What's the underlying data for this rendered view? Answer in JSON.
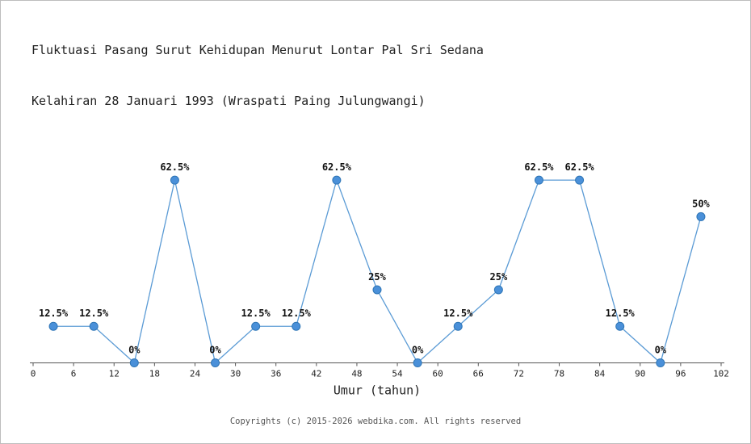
{
  "title": {
    "line1": "Fluktuasi Pasang Surut Kehidupan Menurut Lontar Pal Sri Sedana",
    "line2": "Kelahiran 28 Januari 1993 (Wraspati Paing Julungwangi)"
  },
  "footer": {
    "text": "Copyrights (c) 2015-2026 webdika.com. All rights reserved"
  },
  "chart_data": {
    "type": "line",
    "title": "Fluktuasi Pasang Surut Kehidupan Menurut Lontar Pal Sri Sedana Kelahiran 28 Januari 1993 (Wraspati Paing Julungwangi)",
    "xlabel": "Umur (tahun)",
    "ylabel": "",
    "x": [
      3,
      9,
      15,
      21,
      27,
      33,
      39,
      45,
      51,
      57,
      63,
      69,
      75,
      81,
      87,
      93,
      99
    ],
    "values": [
      12.5,
      12.5,
      0,
      62.5,
      0,
      12.5,
      12.5,
      62.5,
      25,
      0,
      12.5,
      25,
      62.5,
      62.5,
      12.5,
      0,
      50
    ],
    "labels": [
      "12.5%",
      "12.5%",
      "0%",
      "62.5%",
      "0%",
      "12.5%",
      "12.5%",
      "62.5%",
      "25%",
      "0%",
      "12.5%",
      "25%",
      "62.5%",
      "62.5%",
      "12.5%",
      "0%",
      "50%"
    ],
    "x_ticks": [
      0,
      6,
      12,
      18,
      24,
      30,
      36,
      42,
      48,
      54,
      60,
      66,
      72,
      78,
      84,
      90,
      96,
      102
    ],
    "xlim": [
      0,
      102
    ],
    "ylim": [
      0,
      70
    ],
    "grid": "off",
    "legend": "none",
    "line_color": "#5b9bd5",
    "marker_color": "#4a90d9",
    "marker_edge_color": "#2e75b6",
    "axis_color": "#555555"
  }
}
